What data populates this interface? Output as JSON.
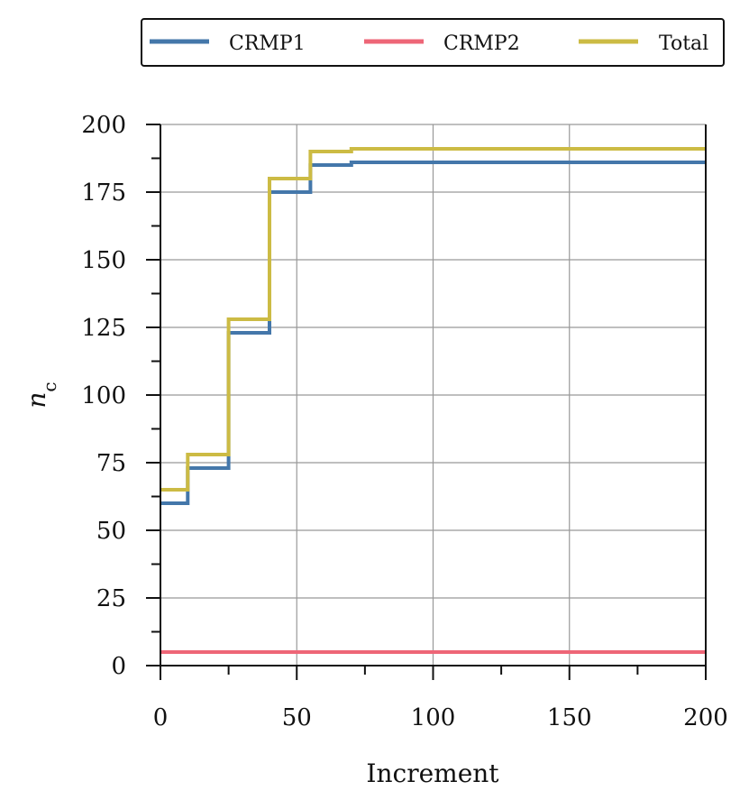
{
  "chart_data": {
    "type": "line",
    "step": true,
    "title": "",
    "xlabel": "Increment",
    "ylabel": {
      "base": "n",
      "subscript": "c"
    },
    "xlim": [
      0,
      200
    ],
    "ylim": [
      0,
      200
    ],
    "xticks_major": [
      0,
      50,
      100,
      150,
      200
    ],
    "xticks_minor": [
      25,
      75,
      125,
      175
    ],
    "yticks_major": [
      0,
      25,
      50,
      75,
      100,
      125,
      150,
      175,
      200
    ],
    "yticks_minor": [
      12.5,
      37.5,
      62.5,
      87.5,
      112.5,
      137.5,
      162.5,
      187.5
    ],
    "grid": true,
    "legend_position": "top, outside plot, horizontal",
    "series": [
      {
        "name": "CRMP1",
        "color": "#4477aa",
        "x": [
          0,
          10,
          10,
          25,
          25,
          40,
          40,
          55,
          55,
          70,
          70,
          200
        ],
        "y": [
          60,
          60,
          73,
          73,
          123,
          123,
          175,
          175,
          185,
          185,
          186,
          186
        ]
      },
      {
        "name": "CRMP2",
        "color": "#ee6677",
        "x": [
          0,
          200
        ],
        "y": [
          5,
          5
        ]
      },
      {
        "name": "Total",
        "color": "#ccbb44",
        "x": [
          0,
          10,
          10,
          25,
          25,
          40,
          40,
          55,
          55,
          70,
          70,
          200
        ],
        "y": [
          65,
          65,
          78,
          78,
          128,
          128,
          180,
          180,
          190,
          190,
          191,
          191
        ]
      }
    ]
  }
}
